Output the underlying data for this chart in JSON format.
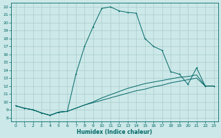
{
  "xlabel": "Humidex (Indice chaleur)",
  "background_color": "#cce8e8",
  "grid_color": "#aacccc",
  "line_color": "#006666",
  "xlim": [
    -0.5,
    23.5
  ],
  "ylim": [
    7.5,
    22.5
  ],
  "xticks": [
    0,
    1,
    2,
    3,
    4,
    5,
    6,
    7,
    8,
    9,
    10,
    11,
    12,
    13,
    14,
    15,
    16,
    17,
    18,
    19,
    20,
    21,
    22,
    23
  ],
  "yticks": [
    8,
    9,
    10,
    11,
    12,
    13,
    14,
    15,
    16,
    17,
    18,
    19,
    20,
    21,
    22
  ],
  "curve1_x": [
    0,
    1,
    2,
    3,
    4,
    5,
    6,
    7,
    8,
    9,
    10,
    11,
    12,
    13,
    14,
    15,
    16,
    17,
    18,
    19,
    20,
    21,
    22,
    23
  ],
  "curve1_y": [
    9.5,
    9.2,
    9.0,
    8.6,
    8.3,
    8.7,
    8.8,
    13.5,
    17.0,
    19.5,
    21.8,
    22.0,
    21.5,
    21.3,
    21.2,
    18.0,
    17.0,
    16.5,
    13.8,
    13.5,
    12.2,
    14.3,
    12.0,
    12.0
  ],
  "curve2_x": [
    0,
    1,
    2,
    3,
    4,
    5,
    6,
    7,
    8,
    9,
    10,
    11,
    12,
    13,
    14,
    15,
    16,
    17,
    18,
    19,
    20,
    21,
    22,
    23
  ],
  "curve2_y": [
    9.5,
    9.2,
    9.0,
    8.6,
    8.3,
    8.7,
    8.8,
    9.2,
    9.6,
    9.9,
    10.2,
    10.5,
    10.8,
    11.1,
    11.4,
    11.6,
    11.9,
    12.1,
    12.4,
    12.6,
    12.8,
    13.0,
    12.0,
    12.0
  ],
  "curve3_x": [
    0,
    1,
    2,
    3,
    4,
    5,
    6,
    7,
    8,
    9,
    10,
    11,
    12,
    13,
    14,
    15,
    16,
    17,
    18,
    19,
    20,
    21,
    22,
    23
  ],
  "curve3_y": [
    9.5,
    9.2,
    9.0,
    8.6,
    8.3,
    8.7,
    8.8,
    9.2,
    9.6,
    10.0,
    10.5,
    10.9,
    11.3,
    11.7,
    12.0,
    12.3,
    12.5,
    12.7,
    12.9,
    13.1,
    13.2,
    13.4,
    12.0,
    12.0
  ]
}
